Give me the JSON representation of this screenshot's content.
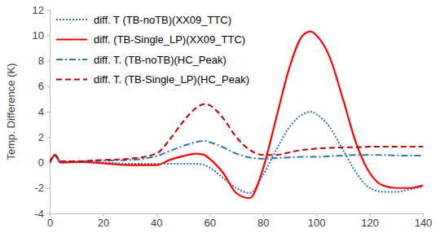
{
  "chart_data": {
    "type": "line",
    "y_label": "Temp. Difference (K)",
    "x": [
      0,
      2,
      4,
      10,
      20,
      30,
      40,
      45,
      50,
      55,
      58,
      60,
      65,
      70,
      75,
      80,
      85,
      90,
      95,
      98,
      100,
      105,
      110,
      115,
      120,
      125,
      130,
      135,
      140
    ],
    "series": [
      {
        "name": "diff. T (TB-noTB)(XX09_TTC)",
        "color": "#2e75b6",
        "line_style": "dotted",
        "values": [
          0,
          0.5,
          0,
          0,
          0,
          -0.1,
          -0.1,
          -0.1,
          -0.1,
          -0.1,
          -0.2,
          -0.4,
          -1.2,
          -2.0,
          -2.4,
          -1.0,
          1.0,
          2.8,
          3.8,
          4.0,
          3.8,
          2.8,
          1.0,
          -0.8,
          -2.0,
          -2.3,
          -2.3,
          -2.1,
          -1.9
        ]
      },
      {
        "name": "diff. (TB-Single_LP)(XX09_TTC)",
        "color": "#ff0000",
        "line_style": "solid",
        "values": [
          0,
          0.6,
          0,
          0.05,
          -0.05,
          -0.2,
          -0.2,
          0.2,
          0.5,
          0.7,
          0.6,
          0.3,
          -0.8,
          -2.4,
          -2.8,
          -0.5,
          3.5,
          7.5,
          10,
          10.3,
          10,
          8.3,
          5,
          1.5,
          -0.8,
          -1.8,
          -2.0,
          -2.0,
          -1.8
        ]
      },
      {
        "name": "diff. T. (TB-noTB)(HC_Peak)",
        "color": "#2e75b6",
        "line_style": "dashdot",
        "values": [
          0,
          0.6,
          0.1,
          0.1,
          0.15,
          0.2,
          0.5,
          0.9,
          1.3,
          1.6,
          1.7,
          1.6,
          1.2,
          0.7,
          0.4,
          0.3,
          0.35,
          0.4,
          0.45,
          0.45,
          0.45,
          0.5,
          0.55,
          0.6,
          0.6,
          0.6,
          0.55,
          0.55,
          0.55
        ]
      },
      {
        "name": "diff. T. (TB-Single_LP)(HC_Peak)",
        "color": "#c00000",
        "line_style": "dashed",
        "values": [
          0,
          0.6,
          0.1,
          0.1,
          0.2,
          0.3,
          0.7,
          1.8,
          3.2,
          4.3,
          4.6,
          4.5,
          3.5,
          2.0,
          1.0,
          0.6,
          0.6,
          0.8,
          1.0,
          1.05,
          1.1,
          1.15,
          1.2,
          1.2,
          1.25,
          1.25,
          1.25,
          1.25,
          1.25
        ]
      }
    ],
    "xlim": [
      0,
      140
    ],
    "xticks": [
      0,
      20,
      40,
      60,
      80,
      100,
      120,
      140
    ],
    "ylim": [
      -4,
      12
    ],
    "yticks": [
      -4,
      -2,
      0,
      2,
      4,
      6,
      8,
      10,
      12
    ],
    "grid": false,
    "legend": "upper left"
  }
}
